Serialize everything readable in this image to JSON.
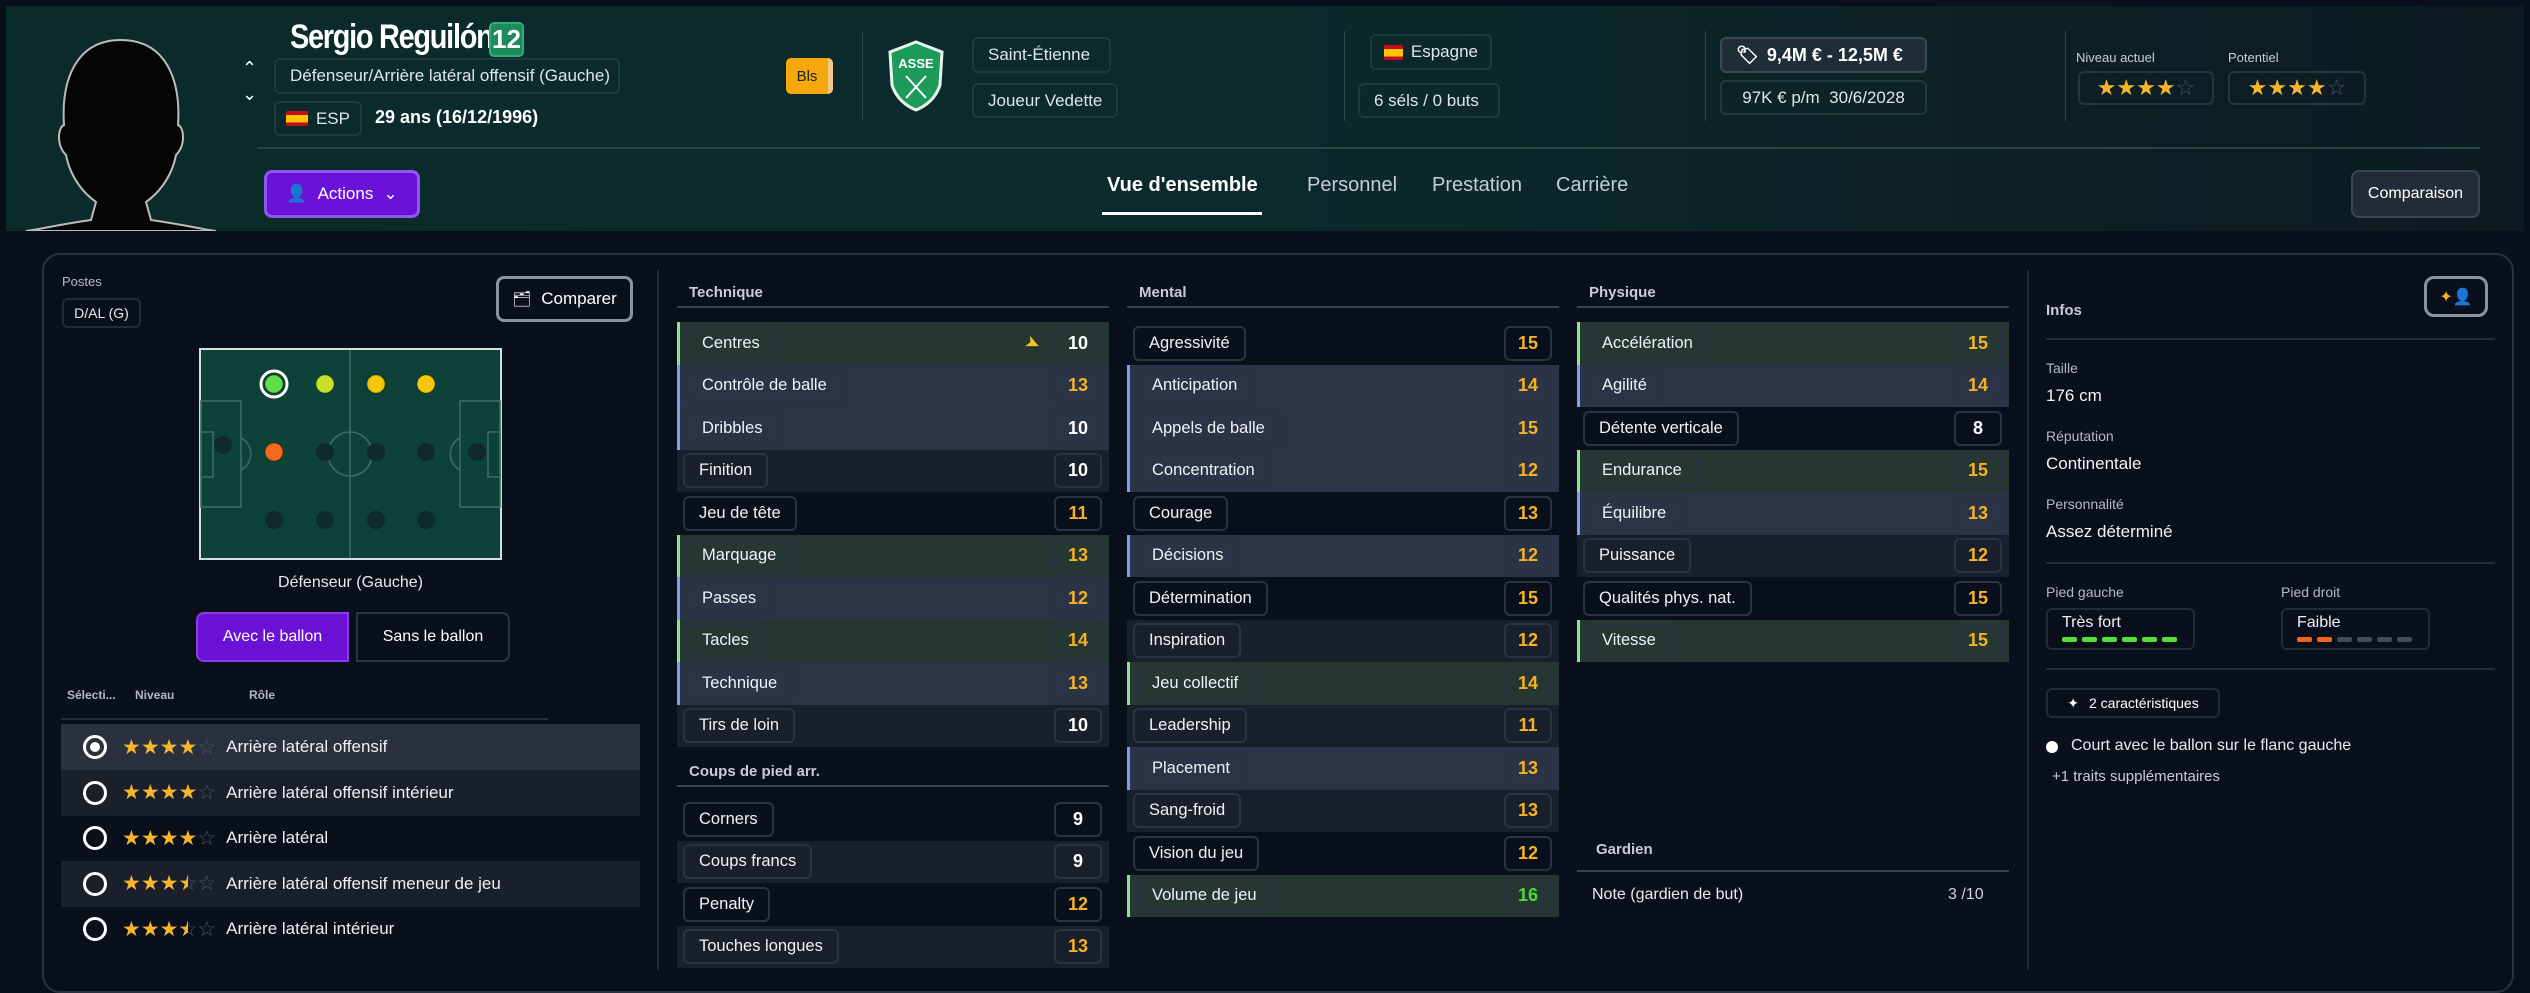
{
  "header": {
    "player_name": "Sergio Reguilón",
    "shirt_number": "12",
    "position": "Défenseur/Arrière latéral offensif (Gauche)",
    "nationality_code": "ESP",
    "age_dob": "29 ans (16/12/1996)",
    "status_badge": "Bls",
    "club": "Saint-Étienne",
    "squad_status": "Joueur Vedette",
    "country": "Espagne",
    "caps_goals": "6 séls / 0 buts",
    "value_range": "9,4M € - 12,5M €",
    "wage": "97K € p/m",
    "contract_end": "30/6/2028",
    "current_ability_label": "Niveau actuel",
    "current_ability_stars": 4,
    "potential_label": "Potentiel",
    "potential_stars": 4,
    "actions_label": "Actions",
    "compare_label": "Comparaison",
    "tabs": [
      {
        "label": "Vue d'ensemble",
        "active": true
      },
      {
        "label": "Personnel",
        "active": false
      },
      {
        "label": "Prestation",
        "active": false
      },
      {
        "label": "Carrière",
        "active": false
      }
    ]
  },
  "positions": {
    "label": "Postes",
    "code": "D/AL (G)",
    "compare_button": "Comparer",
    "pitch_label": "Défenseur (Gauche)",
    "with_ball": "Avec le ballon",
    "without_ball": "Sans le ballon",
    "colors": {
      "natural": "#5ee04a",
      "accomplished": "#c6e02a",
      "competent": "#f2c80f",
      "unconvincing": "#f26a1b",
      "none": "#0f2a2c"
    }
  },
  "roles": {
    "columns": [
      "Sélecti...",
      "Niveau",
      "Rôle"
    ],
    "rows": [
      {
        "role": "Arrière latéral offensif",
        "stars": 4,
        "selected": true
      },
      {
        "role": "Arrière latéral offensif intérieur",
        "stars": 4,
        "selected": false
      },
      {
        "role": "Arrière latéral",
        "stars": 4,
        "selected": false
      },
      {
        "role": "Arrière latéral offensif meneur de jeu",
        "stars": 3.5,
        "selected": false
      },
      {
        "role": "Arrière latéral intérieur",
        "stars": 3.5,
        "selected": false
      }
    ]
  },
  "attributes": {
    "technique": {
      "title": "Technique",
      "rows": [
        {
          "name": "Centres",
          "value": 10,
          "hl": "green",
          "trend": "down"
        },
        {
          "name": "Contrôle de balle",
          "value": 13,
          "hl": "blue"
        },
        {
          "name": "Dribbles",
          "value": 10,
          "hl": "blue"
        },
        {
          "name": "Finition",
          "value": 10
        },
        {
          "name": "Jeu de tête",
          "value": 11
        },
        {
          "name": "Marquage",
          "value": 13,
          "hl": "green"
        },
        {
          "name": "Passes",
          "value": 12,
          "hl": "blue"
        },
        {
          "name": "Tacles",
          "value": 14,
          "hl": "green"
        },
        {
          "name": "Technique",
          "value": 13,
          "hl": "blue"
        },
        {
          "name": "Tirs de loin",
          "value": 10
        }
      ]
    },
    "set_pieces": {
      "title": "Coups de pied arr.",
      "rows": [
        {
          "name": "Corners",
          "value": 9
        },
        {
          "name": "Coups francs",
          "value": 9
        },
        {
          "name": "Penalty",
          "value": 12
        },
        {
          "name": "Touches longues",
          "value": 13
        }
      ]
    },
    "mental": {
      "title": "Mental",
      "rows": [
        {
          "name": "Agressivité",
          "value": 15
        },
        {
          "name": "Anticipation",
          "value": 14,
          "hl": "blue"
        },
        {
          "name": "Appels de balle",
          "value": 15,
          "hl": "blue"
        },
        {
          "name": "Concentration",
          "value": 12,
          "hl": "blue"
        },
        {
          "name": "Courage",
          "value": 13
        },
        {
          "name": "Décisions",
          "value": 12,
          "hl": "blue"
        },
        {
          "name": "Détermination",
          "value": 15
        },
        {
          "name": "Inspiration",
          "value": 12
        },
        {
          "name": "Jeu collectif",
          "value": 14,
          "hl": "green"
        },
        {
          "name": "Leadership",
          "value": 11
        },
        {
          "name": "Placement",
          "value": 13,
          "hl": "blue"
        },
        {
          "name": "Sang-froid",
          "value": 13
        },
        {
          "name": "Vision du jeu",
          "value": 12
        },
        {
          "name": "Volume de jeu",
          "value": 16,
          "hl": "green"
        }
      ]
    },
    "physical": {
      "title": "Physique",
      "rows": [
        {
          "name": "Accélération",
          "value": 15,
          "hl": "green"
        },
        {
          "name": "Agilité",
          "value": 14,
          "hl": "blue"
        },
        {
          "name": "Détente verticale",
          "value": 8
        },
        {
          "name": "Endurance",
          "value": 15,
          "hl": "green"
        },
        {
          "name": "Équilibre",
          "value": 13,
          "hl": "blue"
        },
        {
          "name": "Puissance",
          "value": 12
        },
        {
          "name": "Qualités phys. nat.",
          "value": 15
        },
        {
          "name": "Vitesse",
          "value": 15,
          "hl": "green"
        }
      ]
    },
    "goalkeeper": {
      "title": "Gardien",
      "label": "Note (gardien de but)",
      "value": "3 /10"
    }
  },
  "infos": {
    "title": "Infos",
    "height_label": "Taille",
    "height": "176 cm",
    "reputation_label": "Réputation",
    "reputation": "Continentale",
    "personality_label": "Personnalité",
    "personality": "Assez déterminé",
    "left_foot_label": "Pied gauche",
    "left_foot": "Très fort",
    "left_foot_level": 6,
    "right_foot_label": "Pied droit",
    "right_foot": "Faible",
    "right_foot_level": 2,
    "foot_level_max": 6,
    "traits_button": "2 caractéristiques",
    "trait": "Court avec le ballon sur le flanc gauche",
    "more_traits": "+1 traits supplémentaires"
  }
}
